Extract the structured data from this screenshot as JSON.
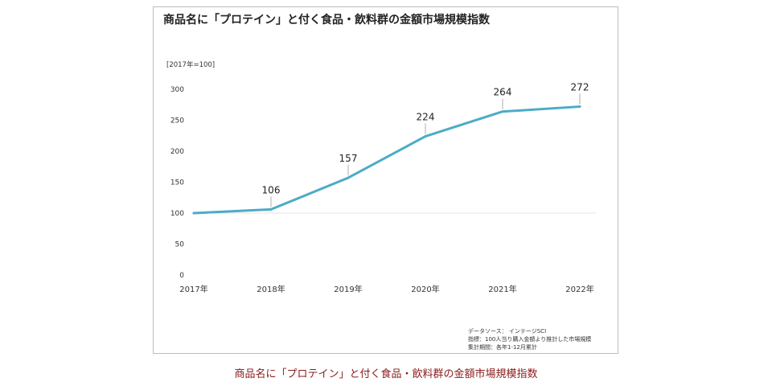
{
  "chart_data": {
    "type": "line",
    "title": "商品名に「プロテイン」と付く食品・飲料群の金額市場規模指数",
    "unit_label": "[2017年=100]",
    "categories": [
      "2017年",
      "2018年",
      "2019年",
      "2020年",
      "2021年",
      "2022年"
    ],
    "values": [
      100,
      106,
      157,
      224,
      264,
      272
    ],
    "data_labels": [
      "",
      "106",
      "157",
      "224",
      "264",
      "272"
    ],
    "y_ticks": [
      "0",
      "50",
      "100",
      "150",
      "200",
      "250",
      "300"
    ],
    "ylim": [
      0,
      300
    ],
    "reference_line": 100,
    "line_color": "#4bacc6",
    "grid": false,
    "legend": "none"
  },
  "source_lines": [
    "データソース： インテージSCI",
    "指標：100人当り購入金額より推計した市場規模",
    "集計期間：各年1-12月累計"
  ],
  "caption": "商品名に「プロテイン」と付く食品・飲料群の金額市場規模指数"
}
